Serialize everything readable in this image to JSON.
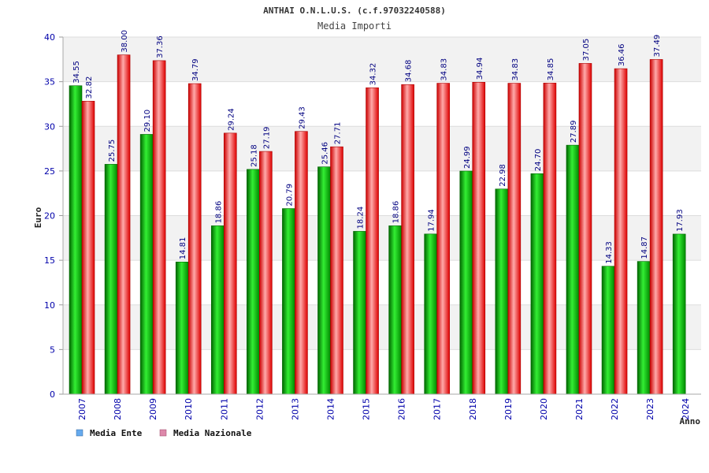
{
  "chart_data": {
    "type": "bar",
    "title": "ANTHAI O.N.L.U.S. (c.f.97032240588)",
    "subtitle": "Media Importi",
    "xlabel": "Anno",
    "ylabel": "Euro",
    "ylim": [
      0,
      40
    ],
    "yticks": [
      "0",
      "5",
      "10",
      "15",
      "20",
      "25",
      "30",
      "35",
      "40"
    ],
    "categories": [
      "2007",
      "2008",
      "2009",
      "2010",
      "2011",
      "2012",
      "2013",
      "2014",
      "2015",
      "2016",
      "2017",
      "2018",
      "2019",
      "2020",
      "2021",
      "2022",
      "2023",
      "2024"
    ],
    "series": [
      {
        "name": "Media Ente",
        "color": "#00aa00",
        "legend_color": "#66aaee",
        "values": [
          34.55,
          25.75,
          29.1,
          14.81,
          18.86,
          25.18,
          20.79,
          25.46,
          18.24,
          18.86,
          17.94,
          24.99,
          22.98,
          24.7,
          27.89,
          14.33,
          14.87,
          17.93
        ],
        "labels": [
          "34.55",
          "25.75",
          "29.10",
          "14.81",
          "18.86",
          "25.18",
          "20.79",
          "25.46",
          "18.24",
          "18.86",
          "17.94",
          "24.99",
          "22.98",
          "24.70",
          "27.89",
          "14.33",
          "14.87",
          "17.93"
        ]
      },
      {
        "name": "Media Nazionale",
        "color": "#ee2222",
        "legend_color": "#dd88aa",
        "values": [
          32.82,
          38.0,
          37.36,
          34.79,
          29.24,
          27.19,
          29.43,
          27.71,
          34.32,
          34.68,
          34.83,
          34.94,
          34.83,
          34.85,
          37.05,
          36.46,
          37.49,
          null
        ],
        "labels": [
          "32.82",
          "38.00",
          "37.36",
          "34.79",
          "29.24",
          "27.19",
          "29.43",
          "27.71",
          "34.32",
          "34.68",
          "34.83",
          "34.94",
          "34.83",
          "34.85",
          "37.05",
          "36.46",
          "37.49",
          null
        ]
      }
    ],
    "grid": true,
    "legend": "bottom-left"
  }
}
